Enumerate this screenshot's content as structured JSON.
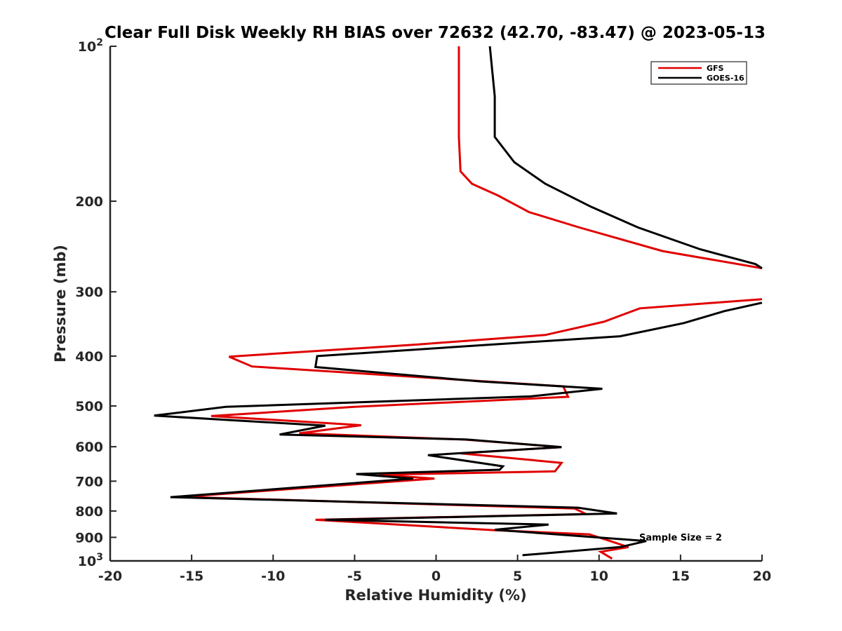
{
  "chart_data": {
    "type": "line",
    "title": "Clear Full Disk Weekly RH BIAS over 72632 (42.70, -83.47) @ 2023-05-13",
    "xlabel": "Relative Humidity (%)",
    "ylabel": "Pressure (mb)",
    "xlim": [
      -20,
      20
    ],
    "ylim": [
      100,
      1000
    ],
    "y_scale": "log",
    "y_reversed": true,
    "x_ticks": [
      "-20",
      "-15",
      "-10",
      "-5",
      "0",
      "5",
      "10",
      "15",
      "20"
    ],
    "y_ticks": [
      {
        "value": 100,
        "base": "10",
        "exp": "2"
      },
      {
        "value": 200,
        "label": "200"
      },
      {
        "value": 300,
        "label": "300"
      },
      {
        "value": 400,
        "label": "400"
      },
      {
        "value": 500,
        "label": "500"
      },
      {
        "value": 600,
        "label": "600"
      },
      {
        "value": 700,
        "label": "700"
      },
      {
        "value": 800,
        "label": "800"
      },
      {
        "value": 900,
        "label": "900"
      },
      {
        "value": 1000,
        "base": "10",
        "exp": "3"
      }
    ],
    "grid": false,
    "legend_position": "top-right",
    "annotation": "Sample Size = 2",
    "series": [
      {
        "name": "GFS",
        "color": "#e00000",
        "segments": [
          [
            [
              1.4,
              100
            ],
            [
              1.4,
              125
            ],
            [
              1.4,
              150
            ],
            [
              1.5,
              175
            ],
            [
              2.2,
              185
            ],
            [
              3.8,
              195
            ],
            [
              5.7,
              210
            ],
            [
              8.8,
              225
            ],
            [
              13.9,
              250
            ],
            [
              20,
              270
            ]
          ],
          [
            [
              20,
              310
            ],
            [
              12.5,
              323
            ],
            [
              10.3,
              343
            ],
            [
              6.7,
              364
            ],
            [
              -1.3,
              380
            ],
            [
              -12.7,
              401
            ],
            [
              -11.3,
              419
            ],
            [
              7.8,
              458
            ],
            [
              8.1,
              480
            ],
            [
              -5,
              502
            ],
            [
              -13.8,
              523
            ],
            [
              -4.6,
              545
            ],
            [
              -8.4,
              565
            ],
            [
              1.7,
              581
            ],
            [
              7.7,
              601
            ],
            [
              1.5,
              618
            ],
            [
              7.7,
              645
            ],
            [
              7.3,
              670
            ],
            [
              -3.5,
              680
            ],
            [
              -0.1,
              692
            ],
            [
              -15.6,
              751
            ],
            [
              8.5,
              791
            ],
            [
              9.2,
              811
            ],
            [
              -7.4,
              832
            ],
            [
              3.6,
              872
            ],
            [
              9.4,
              888
            ],
            [
              10.5,
              911
            ],
            [
              11.8,
              940
            ],
            [
              10.1,
              960
            ],
            [
              10.8,
              990
            ]
          ]
        ]
      },
      {
        "name": "GOES-16",
        "color": "#000000",
        "segments": [
          [
            [
              3.3,
              100
            ],
            [
              3.6,
              125
            ],
            [
              3.6,
              150
            ],
            [
              4.8,
              168
            ],
            [
              6.7,
              185
            ],
            [
              9.5,
              205
            ],
            [
              12.4,
              225
            ],
            [
              16.2,
              248
            ],
            [
              19.6,
              265
            ],
            [
              20,
              270
            ]
          ],
          [
            [
              20,
              315
            ],
            [
              17.7,
              327
            ],
            [
              15.2,
              345
            ],
            [
              11.3,
              366
            ],
            [
              3.3,
              380
            ],
            [
              -7.3,
              400
            ],
            [
              -7.4,
              420
            ],
            [
              2.7,
              448
            ],
            [
              10.2,
              463
            ],
            [
              5.8,
              479
            ],
            [
              -12.9,
              502
            ],
            [
              -17.3,
              522
            ],
            [
              -6.8,
              546
            ],
            [
              -9.6,
              568
            ],
            [
              1.9,
              581
            ],
            [
              7.7,
              601
            ],
            [
              -0.5,
              623
            ],
            [
              4.1,
              655
            ],
            [
              3.9,
              665
            ],
            [
              -4.9,
              678
            ],
            [
              -1.4,
              692
            ],
            [
              -16.3,
              752
            ],
            [
              8.7,
              788
            ],
            [
              11.1,
              809
            ],
            [
              -6.8,
              832
            ],
            [
              6.9,
              850
            ],
            [
              3.6,
              870
            ],
            [
              12.9,
              915
            ],
            [
              11.3,
              940
            ],
            [
              5.3,
              975
            ]
          ]
        ]
      }
    ]
  }
}
